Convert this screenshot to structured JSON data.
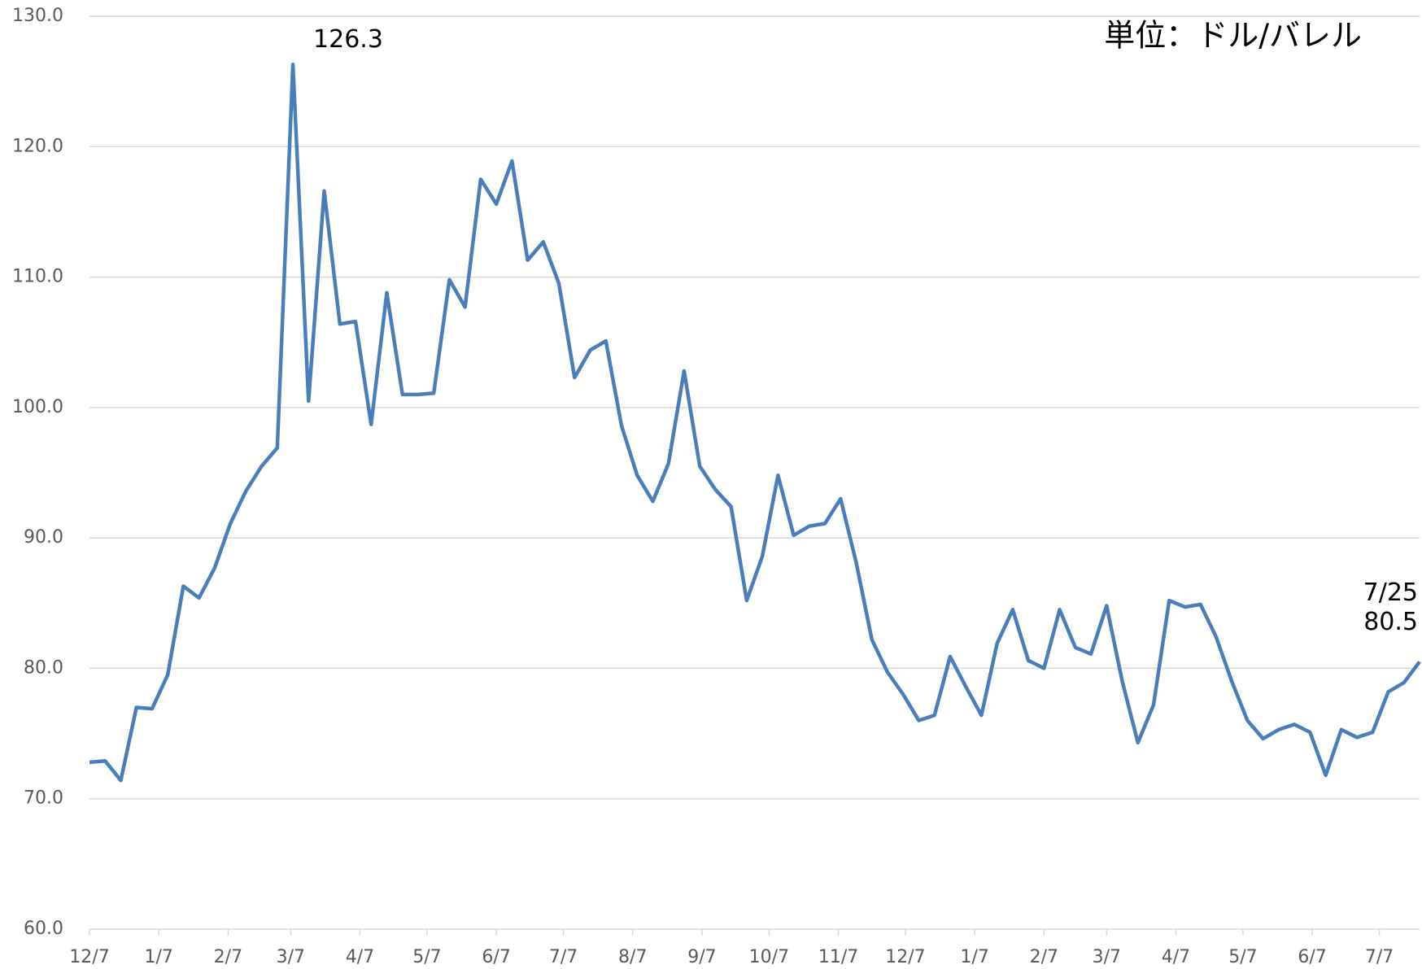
{
  "chart_data": {
    "type": "line",
    "unit_label": "単位：ドル/バレル",
    "x": [
      0,
      7,
      14,
      21,
      28,
      35,
      42,
      49,
      56,
      63,
      70,
      77,
      84,
      91,
      98,
      105,
      112,
      119,
      126,
      133,
      140,
      147,
      154,
      161,
      168,
      175,
      182,
      189,
      196,
      203,
      210,
      217,
      224,
      231,
      238,
      245,
      252,
      259,
      266,
      273,
      280,
      287,
      294,
      301,
      308,
      315,
      322,
      329,
      336,
      343,
      350,
      357,
      364,
      371,
      378,
      385,
      392,
      399,
      406,
      413,
      420,
      427,
      434,
      441,
      448,
      455,
      462,
      469,
      476,
      483,
      490,
      497,
      504,
      511,
      518,
      525,
      532,
      539,
      546,
      553,
      560,
      567,
      574,
      581,
      588,
      595
    ],
    "series": [
      {
        "color": "#4a7ebb",
        "values": [
          72.8,
          72.9,
          71.4,
          77.0,
          76.9,
          79.5,
          86.3,
          85.4,
          87.7,
          91.1,
          93.6,
          95.5,
          96.9,
          126.3,
          100.5,
          116.6,
          106.4,
          106.6,
          98.7,
          108.8,
          101.0,
          101.0,
          101.1,
          109.8,
          107.7,
          117.5,
          115.6,
          118.9,
          111.3,
          112.7,
          109.5,
          102.3,
          104.4,
          105.1,
          98.6,
          94.8,
          92.8,
          95.7,
          102.8,
          95.5,
          93.7,
          92.4,
          85.2,
          88.6,
          94.8,
          90.2,
          90.9,
          91.1,
          93.0,
          88.1,
          82.2,
          79.7,
          78.0,
          76.0,
          76.4,
          80.9,
          78.6,
          76.4,
          81.9,
          84.5,
          80.6,
          80.0,
          84.5,
          81.6,
          81.1,
          84.8,
          79.0,
          74.3,
          77.2,
          85.2,
          84.7,
          84.9,
          82.4,
          79.0,
          76.0,
          74.6,
          75.3,
          75.7,
          75.1,
          71.8,
          75.3,
          74.7,
          75.1,
          78.2,
          78.9,
          80.5
        ],
        "value_labels": [
          null,
          null,
          null,
          null,
          null,
          null,
          null,
          null,
          null,
          null,
          null,
          null,
          null,
          "126.3",
          null,
          null,
          null,
          null,
          null,
          null,
          null,
          null,
          null,
          null,
          null,
          null,
          null,
          null,
          null,
          null,
          null,
          null,
          null,
          null,
          null,
          null,
          null,
          null,
          null,
          null,
          null,
          null,
          null,
          null,
          null,
          null,
          null,
          null,
          null,
          null,
          null,
          null,
          null,
          null,
          null,
          null,
          null,
          null,
          null,
          null,
          null,
          null,
          null,
          null,
          null,
          null,
          null,
          null,
          null,
          null,
          null,
          null,
          null,
          null,
          null,
          null,
          null,
          null,
          null,
          null,
          null,
          null,
          null,
          null,
          null,
          "80.5"
        ]
      }
    ],
    "annotations": [
      "7/25"
    ],
    "xlim": [
      0,
      595
    ],
    "xticks": [
      {
        "value": 0,
        "label": "12/7"
      },
      {
        "value": 31,
        "label": "1/7"
      },
      {
        "value": 62,
        "label": "2/7"
      },
      {
        "value": 90,
        "label": "3/7"
      },
      {
        "value": 121,
        "label": "4/7"
      },
      {
        "value": 151,
        "label": "5/7"
      },
      {
        "value": 182,
        "label": "6/7"
      },
      {
        "value": 212,
        "label": "7/7"
      },
      {
        "value": 243,
        "label": "8/7"
      },
      {
        "value": 274,
        "label": "9/7"
      },
      {
        "value": 304,
        "label": "10/7"
      },
      {
        "value": 335,
        "label": "11/7"
      },
      {
        "value": 365,
        "label": "12/7"
      },
      {
        "value": 396,
        "label": "1/7"
      },
      {
        "value": 427,
        "label": "2/7"
      },
      {
        "value": 455,
        "label": "3/7"
      },
      {
        "value": 486,
        "label": "4/7"
      },
      {
        "value": 516,
        "label": "5/7"
      },
      {
        "value": 547,
        "label": "6/7"
      },
      {
        "value": 577,
        "label": "7/7"
      }
    ],
    "ylim": [
      60,
      130
    ],
    "yticks": [
      {
        "value": 60,
        "label": "60.0"
      },
      {
        "value": 70,
        "label": "70.0"
      },
      {
        "value": 80,
        "label": "80.0"
      },
      {
        "value": 90,
        "label": "90.0"
      },
      {
        "value": 100,
        "label": "100.0"
      },
      {
        "value": 110,
        "label": "110.0"
      },
      {
        "value": 120,
        "label": "120.0"
      },
      {
        "value": 130,
        "label": "130.0"
      }
    ],
    "grid": true
  }
}
